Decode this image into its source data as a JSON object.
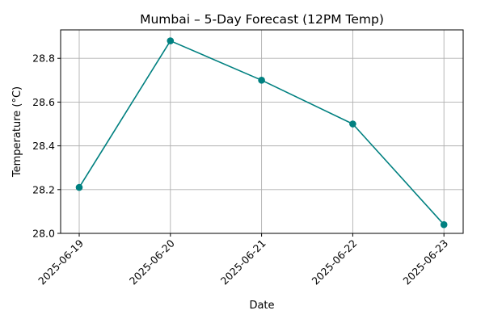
{
  "chart_data": {
    "type": "line",
    "title": "Mumbai – 5-Day Forecast (12PM Temp)",
    "xlabel": "Date",
    "ylabel": "Temperature (°C)",
    "categories": [
      "2025-06-19",
      "2025-06-20",
      "2025-06-21",
      "2025-06-22",
      "2025-06-23"
    ],
    "series": [
      {
        "values": [
          28.21,
          28.88,
          28.7,
          28.5,
          28.04
        ],
        "color": "#008080",
        "marker": "circle"
      }
    ],
    "ylim": [
      28.0,
      28.93
    ],
    "yticks": [
      28.0,
      28.2,
      28.4,
      28.6,
      28.8
    ],
    "ytick_labels": [
      "28.0",
      "28.2",
      "28.4",
      "28.6",
      "28.8"
    ],
    "grid": true,
    "xtick_rotation": 45
  }
}
